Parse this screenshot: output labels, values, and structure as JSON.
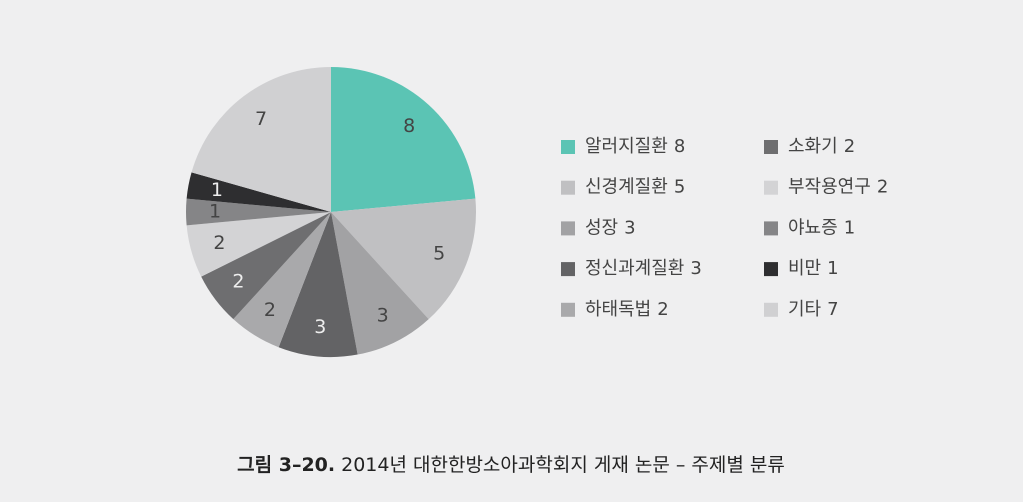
{
  "chart_data": {
    "type": "pie",
    "figure_label": "그림 3–20.",
    "title": "2014년 대한한방소아과학회지 게재 논문 – 주제별 분류",
    "categories": [
      "알러지질환",
      "신경계질환",
      "성장",
      "정신과계질환",
      "하태독법",
      "소화기",
      "부작용연구",
      "야뇨증",
      "비만",
      "기타"
    ],
    "values": [
      8,
      5,
      3,
      3,
      2,
      2,
      2,
      1,
      1,
      7
    ],
    "colors": [
      "#5bc4b4",
      "#c0c0c2",
      "#a2a2a4",
      "#636365",
      "#a9a9ab",
      "#6e6e70",
      "#d3d3d5",
      "#858587",
      "#2e2e30",
      "#d0d0d2"
    ],
    "legend": "right"
  }
}
